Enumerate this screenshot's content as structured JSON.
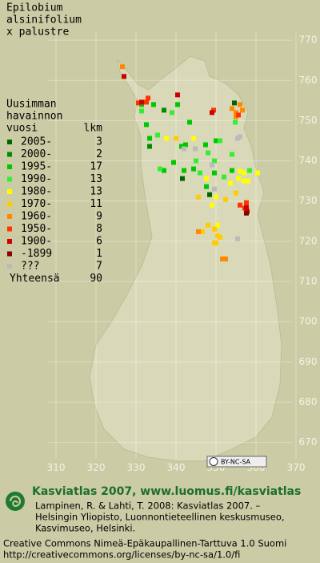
{
  "title": [
    "Epilobium",
    "alsinifolium",
    "x palustre"
  ],
  "grid": {
    "east_lim": [
      296,
      376
    ],
    "north_lim": [
      640,
      780
    ],
    "east_ticks": [
      310,
      320,
      330,
      340,
      350,
      360,
      370
    ],
    "north_ticks": [
      770,
      760,
      750,
      740,
      730,
      720,
      710,
      700,
      690,
      680,
      670
    ]
  },
  "legend": {
    "header": [
      "Uusimman",
      "havainnon",
      "vuosi"
    ],
    "count_header": "lkm",
    "rows": [
      {
        "label": "2005-",
        "count": 3,
        "color": "#006400",
        "points": [
          [
            354.6,
            754.4
          ],
          [
            341.6,
            735.6
          ],
          [
            348.4,
            731.6
          ]
        ]
      },
      {
        "label": "2000-",
        "count": 2,
        "color": "#008c00",
        "points": [
          [
            333.4,
            743.6
          ],
          [
            337,
            752.6
          ]
        ]
      },
      {
        "label": "1995-",
        "count": 17,
        "color": "#00c800",
        "points": [
          [
            331.4,
            754
          ],
          [
            334.4,
            754
          ],
          [
            340.4,
            754
          ],
          [
            332.6,
            749
          ],
          [
            343.4,
            749.6
          ],
          [
            333.4,
            745.6
          ],
          [
            341.4,
            743.6
          ],
          [
            342.4,
            744
          ],
          [
            347.4,
            744
          ],
          [
            350,
            745
          ],
          [
            337,
            737.6
          ],
          [
            339.4,
            739.6
          ],
          [
            342,
            737.6
          ],
          [
            344.4,
            738
          ],
          [
            349.6,
            737
          ],
          [
            354,
            737.6
          ],
          [
            347.6,
            733.6
          ]
        ]
      },
      {
        "label": "1990-",
        "count": 13,
        "color": "#33ee33",
        "points": [
          [
            331.4,
            752.4
          ],
          [
            339,
            752
          ],
          [
            354.8,
            749.6
          ],
          [
            335.4,
            746.4
          ],
          [
            351,
            745
          ],
          [
            354,
            741.6
          ],
          [
            349.6,
            740
          ],
          [
            358.4,
            737.6
          ],
          [
            348,
            742
          ],
          [
            336,
            738
          ],
          [
            346,
            737
          ],
          [
            352,
            736
          ],
          [
            345,
            740
          ]
        ]
      },
      {
        "label": "1980-",
        "count": 13,
        "color": "#ffff00",
        "points": [
          [
            337.6,
            745.6
          ],
          [
            344.4,
            745.6
          ],
          [
            356,
            737.4
          ],
          [
            357,
            737
          ],
          [
            357,
            735
          ],
          [
            347.6,
            735.6
          ],
          [
            353.6,
            734.4
          ],
          [
            355.6,
            735.6
          ],
          [
            358,
            735
          ],
          [
            360.4,
            737
          ],
          [
            350,
            731
          ],
          [
            349,
            729
          ],
          [
            350.4,
            724
          ]
        ]
      },
      {
        "label": "1970-",
        "count": 11,
        "color": "#ffcc00",
        "points": [
          [
            340,
            745.6
          ],
          [
            352.4,
            730.4
          ],
          [
            355,
            732
          ],
          [
            345.6,
            731
          ],
          [
            346.6,
            722.4
          ],
          [
            349.6,
            723
          ],
          [
            350.4,
            721.4
          ],
          [
            349.6,
            719.6
          ],
          [
            350,
            719.6
          ],
          [
            351,
            721
          ],
          [
            348,
            724
          ]
        ]
      },
      {
        "label": "1960-",
        "count": 9,
        "color": "#ff8800",
        "points": [
          [
            326.6,
            763.4
          ],
          [
            355,
            752
          ],
          [
            356.6,
            752.6
          ],
          [
            345.6,
            722.4
          ],
          [
            351.6,
            715.6
          ],
          [
            352.4,
            715.6
          ],
          [
            355,
            751
          ],
          [
            356,
            754
          ],
          [
            354,
            753
          ]
        ]
      },
      {
        "label": "1950-",
        "count": 8,
        "color": "#ff3300",
        "points": [
          [
            332.6,
            754.6
          ],
          [
            349.4,
            752.6
          ],
          [
            357.6,
            729.6
          ],
          [
            357.2,
            728.2
          ],
          [
            333,
            755.6
          ],
          [
            355.6,
            751.4
          ],
          [
            356,
            729
          ],
          [
            330.6,
            754.4
          ]
        ]
      },
      {
        "label": "1900-",
        "count": 6,
        "color": "#cc0000",
        "points": [
          [
            327,
            761
          ],
          [
            340.4,
            756.4
          ],
          [
            357.6,
            728.4
          ],
          [
            331.4,
            754.6
          ],
          [
            349,
            752
          ],
          [
            357.8,
            727.4
          ]
        ]
      },
      {
        "label": "-1899",
        "count": 1,
        "color": "#880000",
        "points": [
          [
            357.6,
            727
          ]
        ]
      },
      {
        "label": "???",
        "count": 7,
        "color": "#bbbbbb",
        "points": [
          [
            344.8,
            743
          ],
          [
            355.4,
            745.6
          ],
          [
            349.6,
            733
          ],
          [
            355.4,
            720.6
          ],
          [
            342,
            743
          ],
          [
            349,
            739
          ],
          [
            356,
            746
          ]
        ]
      }
    ],
    "total_label": "Yhteensä",
    "total": 90
  },
  "cc_badge": "BY-NC-SA",
  "footer": {
    "heading": "Kasviatlas 2007, www.luomus.fi/kasviatlas",
    "citation": [
      "Lampinen, R. & Lahti, T. 2008: Kasviatlas 2007. –",
      "Helsingin Yliopisto, Luonnontieteellinen keskusmuseo,",
      "Kasvimuseo, Helsinki."
    ],
    "license": [
      "Creative Commons Nimeä-Epäkaupallinen-Tarttuva 1.0 Suomi",
      "http://creativecommons.org/licenses/by-nc-sa/1.0/fi"
    ]
  }
}
